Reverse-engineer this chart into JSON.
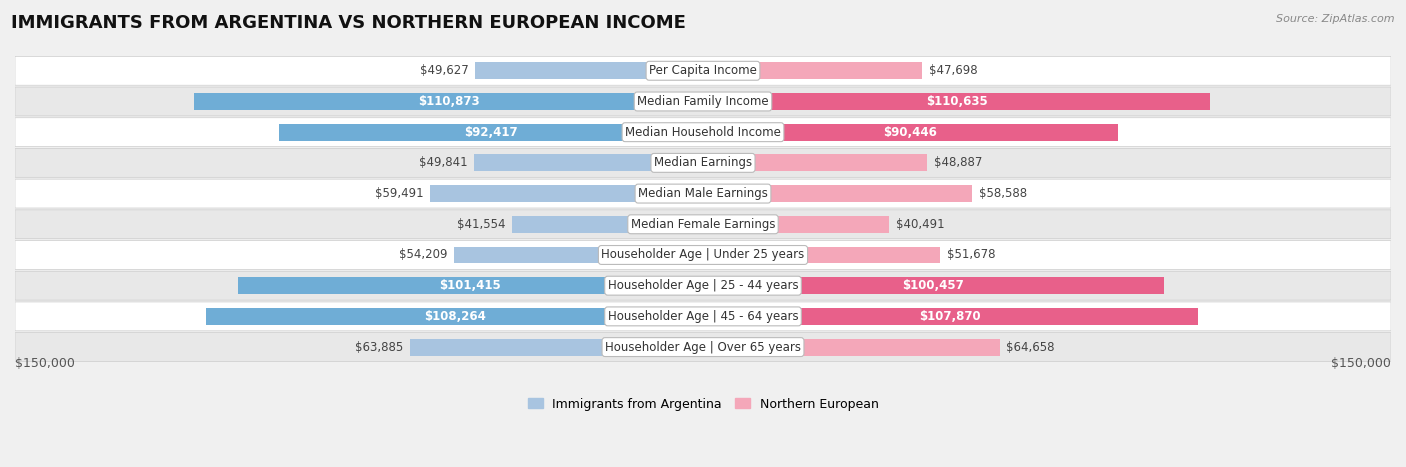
{
  "title": "IMMIGRANTS FROM ARGENTINA VS NORTHERN EUROPEAN INCOME",
  "source": "Source: ZipAtlas.com",
  "categories": [
    "Per Capita Income",
    "Median Family Income",
    "Median Household Income",
    "Median Earnings",
    "Median Male Earnings",
    "Median Female Earnings",
    "Householder Age | Under 25 years",
    "Householder Age | 25 - 44 years",
    "Householder Age | 45 - 64 years",
    "Householder Age | Over 65 years"
  ],
  "argentina_values": [
    49627,
    110873,
    92417,
    49841,
    59491,
    41554,
    54209,
    101415,
    108264,
    63885
  ],
  "northern_values": [
    47698,
    110635,
    90446,
    48887,
    58588,
    40491,
    51678,
    100457,
    107870,
    64658
  ],
  "argentina_labels": [
    "$49,627",
    "$110,873",
    "$92,417",
    "$49,841",
    "$59,491",
    "$41,554",
    "$54,209",
    "$101,415",
    "$108,264",
    "$63,885"
  ],
  "northern_labels": [
    "$47,698",
    "$110,635",
    "$90,446",
    "$48,887",
    "$58,588",
    "$40,491",
    "$51,678",
    "$100,457",
    "$107,870",
    "$64,658"
  ],
  "argentina_bar_color_light": "#a8c4e0",
  "argentina_bar_color_dark": "#6fadd6",
  "northern_bar_color_light": "#f4a7b9",
  "northern_bar_color_dark": "#e8608a",
  "argentina_inside_threshold": 80000,
  "northern_inside_threshold": 80000,
  "max_value": 150000,
  "xlabel_left": "$150,000",
  "xlabel_right": "$150,000",
  "legend_argentina": "Immigrants from Argentina",
  "legend_northern": "Northern European",
  "background_color": "#f0f0f0",
  "row_colors": [
    "#ffffff",
    "#e8e8e8"
  ],
  "title_fontsize": 13,
  "label_fontsize": 8.5,
  "category_fontsize": 8.5
}
